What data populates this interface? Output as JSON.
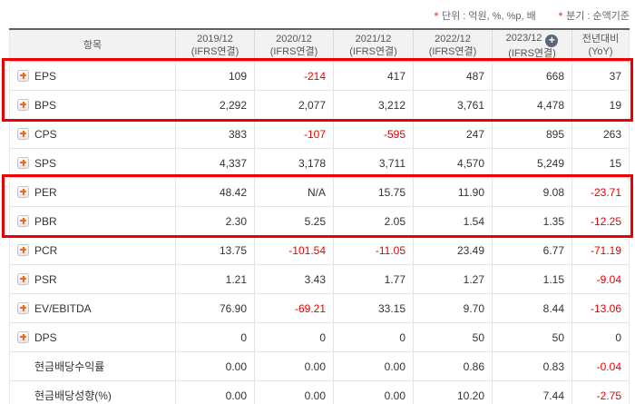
{
  "notes": [
    {
      "star": "*",
      "text": "단위 : 억원, %, %p, 배"
    },
    {
      "star": "*",
      "text": "분기 : 순액기준"
    }
  ],
  "table": {
    "item_header": "항목",
    "columns": [
      {
        "line1": "2019/12",
        "line2": "(IFRS연결)",
        "has_plus": false
      },
      {
        "line1": "2020/12",
        "line2": "(IFRS연결)",
        "has_plus": false
      },
      {
        "line1": "2021/12",
        "line2": "(IFRS연결)",
        "has_plus": false
      },
      {
        "line1": "2022/12",
        "line2": "(IFRS연결)",
        "has_plus": false
      },
      {
        "line1": "2023/12",
        "line2": "(IFRS연결)",
        "has_plus": true
      },
      {
        "line1": "전년대비",
        "line2": "(YoY)",
        "has_plus": false
      }
    ],
    "rows": [
      {
        "label": "EPS",
        "has_icon": true,
        "values": [
          "109",
          "-214",
          "417",
          "487",
          "668",
          "37"
        ]
      },
      {
        "label": "BPS",
        "has_icon": true,
        "values": [
          "2,292",
          "2,077",
          "3,212",
          "3,761",
          "4,478",
          "19"
        ]
      },
      {
        "label": "CPS",
        "has_icon": true,
        "values": [
          "383",
          "-107",
          "-595",
          "247",
          "895",
          "263"
        ]
      },
      {
        "label": "SPS",
        "has_icon": true,
        "values": [
          "4,337",
          "3,178",
          "3,711",
          "4,570",
          "5,249",
          "15"
        ]
      },
      {
        "label": "PER",
        "has_icon": true,
        "values": [
          "48.42",
          "N/A",
          "15.75",
          "11.90",
          "9.08",
          "-23.71"
        ]
      },
      {
        "label": "PBR",
        "has_icon": true,
        "values": [
          "2.30",
          "5.25",
          "2.05",
          "1.54",
          "1.35",
          "-12.25"
        ]
      },
      {
        "label": "PCR",
        "has_icon": true,
        "values": [
          "13.75",
          "-101.54",
          "-11.05",
          "23.49",
          "6.77",
          "-71.19"
        ]
      },
      {
        "label": "PSR",
        "has_icon": true,
        "values": [
          "1.21",
          "3.43",
          "1.77",
          "1.27",
          "1.15",
          "-9.04"
        ]
      },
      {
        "label": "EV/EBITDA",
        "has_icon": true,
        "values": [
          "76.90",
          "-69.21",
          "33.15",
          "9.70",
          "8.44",
          "-13.06"
        ]
      },
      {
        "label": "DPS",
        "has_icon": true,
        "values": [
          "0",
          "0",
          "0",
          "50",
          "50",
          "0"
        ]
      },
      {
        "label": "현금배당수익률",
        "has_icon": false,
        "values": [
          "0.00",
          "0.00",
          "0.00",
          "0.86",
          "0.83",
          "-0.04"
        ]
      },
      {
        "label": "현금배당성향(%)",
        "has_icon": false,
        "values": [
          "0.00",
          "0.00",
          "0.00",
          "10.20",
          "7.44",
          "-2.75"
        ]
      }
    ],
    "highlights": [
      {
        "from": 0,
        "to": 1
      },
      {
        "from": 4,
        "to": 5
      }
    ]
  },
  "colors": {
    "accent": "#f0532d",
    "negative": "#e60000",
    "highlight": "#ee0000",
    "plus": "#f26522",
    "badge": "#5a6577",
    "header_bg": "#f2f2f2"
  }
}
